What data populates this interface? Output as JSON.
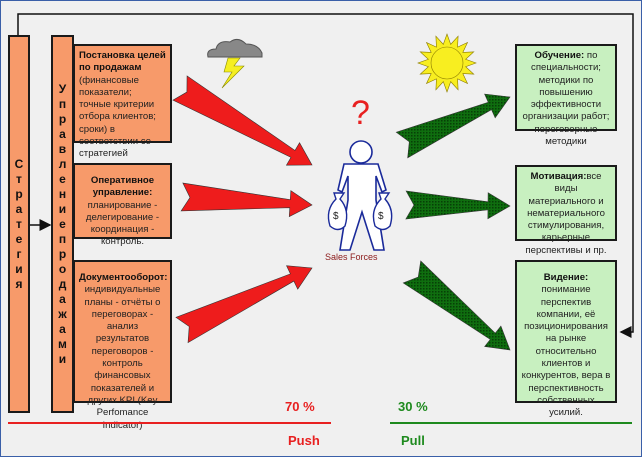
{
  "left_bars": {
    "strategy": "Стратегия",
    "sales_management": "Управление продажами"
  },
  "push_boxes": [
    {
      "title": "Постановка целей по продажам",
      "text": " (финансовые показатели; точные критерии отбора клиентов; сроки) в соответствии со стратегией компании"
    },
    {
      "title": "Оперативное управление:",
      "text": "планирование - делегирование - координация - контроль."
    },
    {
      "title": "Документооборот:",
      "text": "индивидуальные планы - отчёты о переговорах - анализ результатов переговоров - контроль финансовых показателей и других KPI (Key Perfomance Indicator)"
    }
  ],
  "pull_boxes": [
    {
      "title": "Обучение:",
      "text": " по специальности; методики по повышению эффективности организации работ; переговорные методики"
    },
    {
      "title": "Мотивация:",
      "text": "все виды материального и нематериального стимулирования, карьерные перспективы и пр."
    },
    {
      "title": "Видение:",
      "text": "понимание перспектив компании, её позиционирования на рынке относительно клиентов и конкурентов, вера в перспективность собственных усилий."
    }
  ],
  "center": {
    "question": "?",
    "figure_label": "Sales Forces",
    "icons": [
      "storm-cloud-icon",
      "sun-icon",
      "person-icon",
      "money-bag-icon"
    ]
  },
  "push": {
    "percent": "70 %",
    "label": "Push",
    "color": "#e82020"
  },
  "pull": {
    "percent": "30 %",
    "label": "Pull",
    "color": "#1e8a1e"
  }
}
